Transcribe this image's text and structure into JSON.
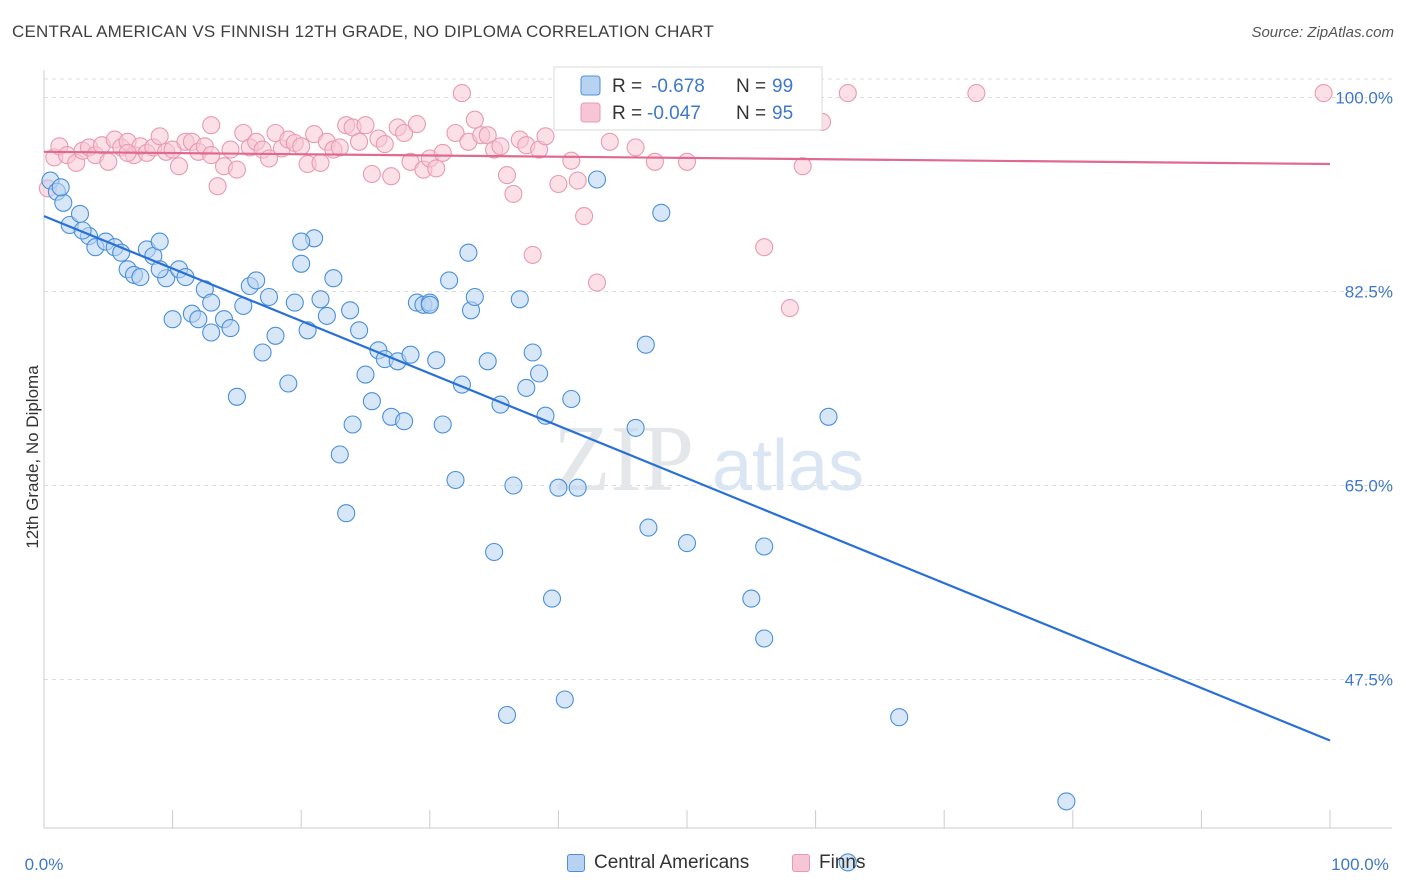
{
  "title": "CENTRAL AMERICAN VS FINNISH 12TH GRADE, NO DIPLOMA CORRELATION CHART",
  "source": "Source: ZipAtlas.com",
  "watermark": {
    "zip": "ZIP",
    "atlas": "atlas"
  },
  "colors": {
    "blue": "#4a90d9",
    "blue_fill": "#b8d3f2",
    "blue_line": "#2970d6",
    "pink": "#e89ab3",
    "pink_fill": "#f7c6d6",
    "pink_line": "#e0698f",
    "axis_value": "#3f78c9",
    "grid": "#dddddd"
  },
  "legend_top": {
    "rows": [
      {
        "r_label": "R =",
        "r_value": "-0.678",
        "n_label": "N =",
        "n_value": "99"
      },
      {
        "r_label": "R =",
        "r_value": "-0.047",
        "n_label": "N =",
        "n_value": "95"
      }
    ]
  },
  "legend_bottom": [
    {
      "label": "Central Americans"
    },
    {
      "label": "Finns"
    }
  ],
  "chart_data": {
    "type": "scatter",
    "title": "CENTRAL AMERICAN VS FINNISH 12TH GRADE, NO DIPLOMA CORRELATION CHART",
    "ylabel": "12th Grade, No Diploma",
    "xlabel": "",
    "xlim": [
      0,
      100
    ],
    "ylim": [
      30.5,
      102
    ],
    "x_tick_labels": [
      "0.0%",
      "100.0%"
    ],
    "y_ticks": [
      {
        "value": 100,
        "label": "100.0%"
      },
      {
        "value": 82.5,
        "label": "82.5%"
      },
      {
        "value": 65,
        "label": "65.0%"
      },
      {
        "value": 47.5,
        "label": "47.5%"
      }
    ],
    "grid": true,
    "legend_position": "top-center",
    "series": [
      {
        "name": "Central Americans",
        "R": -0.678,
        "N": 99,
        "trend": {
          "x": [
            0,
            100
          ],
          "y": [
            89.3,
            42.0
          ]
        },
        "points": [
          [
            0.5,
            92.5
          ],
          [
            1,
            91.5
          ],
          [
            1.5,
            90.5
          ],
          [
            2,
            88.5
          ],
          [
            2.8,
            89.5
          ],
          [
            3.5,
            87.5
          ],
          [
            4,
            86.5
          ],
          [
            4.8,
            87.0
          ],
          [
            5.5,
            86.5
          ],
          [
            6,
            86.0
          ],
          [
            6.5,
            84.5
          ],
          [
            7,
            84.0
          ],
          [
            7.5,
            83.8
          ],
          [
            8,
            86.3
          ],
          [
            8.5,
            85.7
          ],
          [
            9,
            87.0
          ],
          [
            9.5,
            83.7
          ],
          [
            10,
            80.0
          ],
          [
            10.5,
            84.5
          ],
          [
            11,
            83.8
          ],
          [
            11.5,
            80.5
          ],
          [
            12,
            80.0
          ],
          [
            12.5,
            82.7
          ],
          [
            13,
            81.5
          ],
          [
            14,
            80.0
          ],
          [
            14.5,
            79.2
          ],
          [
            15,
            73.0
          ],
          [
            15.5,
            81.2
          ],
          [
            16,
            83.0
          ],
          [
            16.5,
            83.5
          ],
          [
            17,
            77.0
          ],
          [
            17.5,
            82.0
          ],
          [
            18,
            78.5
          ],
          [
            19,
            74.2
          ],
          [
            19.5,
            81.5
          ],
          [
            20,
            85.0
          ],
          [
            20.5,
            79.0
          ],
          [
            21,
            87.3
          ],
          [
            21.5,
            81.8
          ],
          [
            22,
            80.3
          ],
          [
            22.5,
            83.7
          ],
          [
            23,
            67.8
          ],
          [
            23.5,
            62.5
          ],
          [
            23.8,
            80.8
          ],
          [
            24,
            70.5
          ],
          [
            24.5,
            79.0
          ],
          [
            25,
            75.0
          ],
          [
            25.5,
            72.6
          ],
          [
            26,
            77.2
          ],
          [
            26.5,
            76.4
          ],
          [
            27,
            71.2
          ],
          [
            27.5,
            76.2
          ],
          [
            28,
            70.8
          ],
          [
            28.5,
            76.8
          ],
          [
            29,
            81.5
          ],
          [
            29.5,
            81.3
          ],
          [
            30,
            81.5
          ],
          [
            30.5,
            76.3
          ],
          [
            31,
            70.5
          ],
          [
            31.5,
            83.5
          ],
          [
            32,
            65.5
          ],
          [
            32.5,
            74.1
          ],
          [
            33,
            86.0
          ],
          [
            33.2,
            80.8
          ],
          [
            33.5,
            82.0
          ],
          [
            34.5,
            76.2
          ],
          [
            35,
            59.0
          ],
          [
            35.5,
            72.3
          ],
          [
            36,
            44.3
          ],
          [
            36.5,
            65.0
          ],
          [
            37,
            81.8
          ],
          [
            37.5,
            73.8
          ],
          [
            38,
            77.0
          ],
          [
            38.5,
            75.1
          ],
          [
            39,
            71.3
          ],
          [
            39.5,
            54.8
          ],
          [
            40,
            64.8
          ],
          [
            40.5,
            45.7
          ],
          [
            41,
            72.8
          ],
          [
            41.5,
            64.8
          ],
          [
            43,
            92.6
          ],
          [
            46,
            70.2
          ],
          [
            46.8,
            77.7
          ],
          [
            47,
            61.2
          ],
          [
            48,
            89.6
          ],
          [
            50,
            59.8
          ],
          [
            55,
            54.8
          ],
          [
            56,
            59.5
          ],
          [
            56,
            51.2
          ],
          [
            61,
            71.2
          ],
          [
            66.5,
            44.1
          ],
          [
            79.5,
            36.5
          ],
          [
            62.5,
            31.0
          ],
          [
            1.3,
            91.9
          ],
          [
            3.0,
            88.0
          ],
          [
            9.0,
            84.5
          ],
          [
            20.0,
            87.0
          ],
          [
            13.0,
            78.8
          ],
          [
            30.0,
            81.3
          ]
        ]
      },
      {
        "name": "Finns",
        "R": -0.047,
        "N": 95,
        "trend": {
          "x": [
            0,
            100
          ],
          "y": [
            95.1,
            94.0
          ]
        },
        "points": [
          [
            0.3,
            91.8
          ],
          [
            0.8,
            94.6
          ],
          [
            1.2,
            95.6
          ],
          [
            1.8,
            94.8
          ],
          [
            2.5,
            94.1
          ],
          [
            3,
            95.2
          ],
          [
            3.5,
            95.5
          ],
          [
            4,
            94.8
          ],
          [
            4.5,
            95.7
          ],
          [
            5,
            94.2
          ],
          [
            5.5,
            96.2
          ],
          [
            6,
            95.5
          ],
          [
            6.5,
            96.0
          ],
          [
            7,
            94.8
          ],
          [
            7.5,
            95.6
          ],
          [
            8,
            95.0
          ],
          [
            8.5,
            95.5
          ],
          [
            9,
            96.5
          ],
          [
            9.5,
            95.1
          ],
          [
            10,
            95.3
          ],
          [
            10.5,
            93.8
          ],
          [
            11,
            96.0
          ],
          [
            11.5,
            96.0
          ],
          [
            12,
            95.1
          ],
          [
            12.5,
            95.6
          ],
          [
            13,
            97.5
          ],
          [
            13.5,
            92.0
          ],
          [
            14,
            93.8
          ],
          [
            14.5,
            95.3
          ],
          [
            15,
            93.5
          ],
          [
            15.5,
            96.8
          ],
          [
            16,
            95.5
          ],
          [
            16.5,
            96.0
          ],
          [
            17,
            95.3
          ],
          [
            17.5,
            94.5
          ],
          [
            18,
            96.8
          ],
          [
            18.5,
            95.4
          ],
          [
            19,
            96.2
          ],
          [
            19.5,
            95.9
          ],
          [
            20,
            95.6
          ],
          [
            20.5,
            94.0
          ],
          [
            21,
            96.7
          ],
          [
            21.5,
            94.1
          ],
          [
            22,
            96.0
          ],
          [
            22.5,
            95.3
          ],
          [
            23,
            95.5
          ],
          [
            23.5,
            97.5
          ],
          [
            24,
            97.3
          ],
          [
            24.5,
            96.0
          ],
          [
            25,
            97.5
          ],
          [
            25.5,
            93.1
          ],
          [
            26,
            96.3
          ],
          [
            26.5,
            95.8
          ],
          [
            27,
            92.9
          ],
          [
            27.5,
            97.3
          ],
          [
            28,
            96.8
          ],
          [
            28.5,
            94.2
          ],
          [
            29,
            97.6
          ],
          [
            29.5,
            93.5
          ],
          [
            30,
            94.5
          ],
          [
            30.5,
            93.6
          ],
          [
            31,
            95.0
          ],
          [
            32,
            96.8
          ],
          [
            32.5,
            100.4
          ],
          [
            33,
            96.0
          ],
          [
            33.5,
            98.0
          ],
          [
            34,
            96.6
          ],
          [
            34.5,
            96.6
          ],
          [
            35,
            95.3
          ],
          [
            35.5,
            95.6
          ],
          [
            36,
            93.0
          ],
          [
            36.5,
            91.3
          ],
          [
            37,
            96.2
          ],
          [
            37.5,
            95.7
          ],
          [
            38,
            85.8
          ],
          [
            38.5,
            95.3
          ],
          [
            39,
            96.5
          ],
          [
            40,
            92.2
          ],
          [
            41,
            94.3
          ],
          [
            41.5,
            92.5
          ],
          [
            42,
            89.3
          ],
          [
            43,
            83.3
          ],
          [
            44,
            96.0
          ],
          [
            46,
            95.5
          ],
          [
            47.5,
            94.2
          ],
          [
            50,
            94.2
          ],
          [
            56,
            86.5
          ],
          [
            58,
            81.0
          ],
          [
            59,
            93.8
          ],
          [
            60.5,
            97.8
          ],
          [
            62.5,
            100.4
          ],
          [
            72.5,
            100.4
          ],
          [
            99.5,
            100.4
          ],
          [
            6.5,
            95.0
          ],
          [
            13.0,
            94.8
          ]
        ]
      }
    ]
  }
}
